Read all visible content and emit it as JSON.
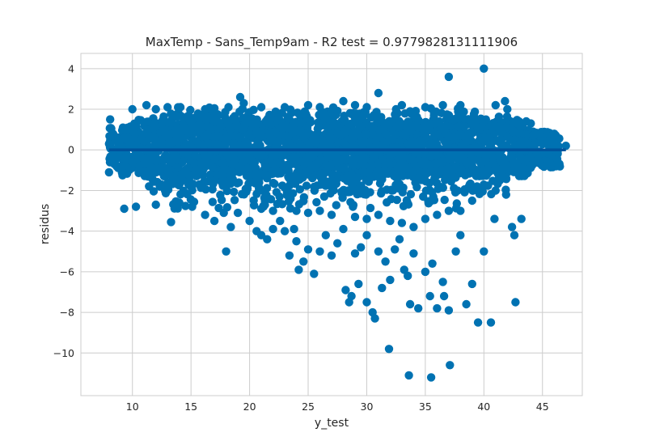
{
  "chart_data": {
    "type": "scatter",
    "title": "MaxTemp - Sans_Temp9am - R2 test = 0.9779828131111906",
    "xlabel": "y_test",
    "ylabel": "residus",
    "xlim": [
      5.6,
      48.4
    ],
    "ylim": [
      -12.1,
      4.75
    ],
    "xticks": [
      10,
      15,
      20,
      25,
      30,
      35,
      40,
      45
    ],
    "yticks": [
      4,
      2,
      0,
      -2,
      -4,
      -6,
      -8,
      -10
    ],
    "ytick_labels": [
      "4",
      "2",
      "0",
      "−2",
      "−4",
      "−6",
      "−8",
      "−10"
    ],
    "grid": true,
    "point_color": "#0072b2",
    "reference_line": {
      "y": 0,
      "x_range": [
        8,
        47
      ],
      "color": "#00539c"
    },
    "dense_cluster": {
      "note_x_range": [
        8,
        47
      ],
      "bands": [
        {
          "x": [
            9,
            44
          ],
          "y": [
            -1.3,
            1.5
          ]
        },
        {
          "x": [
            11,
            42
          ],
          "y": [
            -2.2,
            1.9
          ]
        },
        {
          "x": [
            13,
            39
          ],
          "y": [
            -2.9,
            2.1
          ]
        }
      ]
    },
    "points": [
      [
        8.0,
        -1.1
      ],
      [
        8.1,
        1.5
      ],
      [
        8.0,
        0.3
      ],
      [
        9.0,
        0.5
      ],
      [
        9.5,
        -0.3
      ],
      [
        10.0,
        2.0
      ],
      [
        11.2,
        2.2
      ],
      [
        12.0,
        2.0
      ],
      [
        13.0,
        2.1
      ],
      [
        14.1,
        2.1
      ],
      [
        16.2,
        2.0
      ],
      [
        17.0,
        2.05
      ],
      [
        18.2,
        2.1
      ],
      [
        19.2,
        2.6
      ],
      [
        19.5,
        2.3
      ],
      [
        21.0,
        2.1
      ],
      [
        23.0,
        2.1
      ],
      [
        25.0,
        2.2
      ],
      [
        26.0,
        2.1
      ],
      [
        28.0,
        2.4
      ],
      [
        29.0,
        2.2
      ],
      [
        30.0,
        2.1
      ],
      [
        31.0,
        2.8
      ],
      [
        32.5,
        2.0
      ],
      [
        33.0,
        2.2
      ],
      [
        35.0,
        2.1
      ],
      [
        36.5,
        2.2
      ],
      [
        37.0,
        3.6
      ],
      [
        38.0,
        2.2
      ],
      [
        40.0,
        4.0
      ],
      [
        41.0,
        2.2
      ],
      [
        41.8,
        2.4
      ],
      [
        42.0,
        2.0
      ],
      [
        43.0,
        1.4
      ],
      [
        44.0,
        1.3
      ],
      [
        44.2,
        0.7
      ],
      [
        45.5,
        0.4
      ],
      [
        46.1,
        0.0
      ],
      [
        47.0,
        0.2
      ],
      [
        44.5,
        -0.2
      ],
      [
        43.5,
        -0.6
      ],
      [
        42.8,
        -0.9
      ],
      [
        41.5,
        0.5
      ],
      [
        42.5,
        0.9
      ],
      [
        43.0,
        -1.0
      ],
      [
        9.3,
        -2.9
      ],
      [
        10.3,
        -2.8
      ],
      [
        12.0,
        -2.7
      ],
      [
        13.3,
        -3.55
      ],
      [
        14.0,
        -2.6
      ],
      [
        15.1,
        -2.8
      ],
      [
        16.2,
        -3.2
      ],
      [
        17.0,
        -3.5
      ],
      [
        17.8,
        -3.1
      ],
      [
        18.0,
        -5.0
      ],
      [
        18.4,
        -3.8
      ],
      [
        19.0,
        -3.1
      ],
      [
        20.0,
        -3.5
      ],
      [
        20.6,
        -4.0
      ],
      [
        21.0,
        -4.2
      ],
      [
        21.5,
        -4.4
      ],
      [
        22.0,
        -3.9
      ],
      [
        22.6,
        -3.5
      ],
      [
        23.0,
        -4.0
      ],
      [
        23.4,
        -5.2
      ],
      [
        23.8,
        -3.9
      ],
      [
        24.0,
        -4.5
      ],
      [
        24.2,
        -5.9
      ],
      [
        24.6,
        -5.5
      ],
      [
        25.0,
        -4.9
      ],
      [
        25.5,
        -6.1
      ],
      [
        26.0,
        -5.0
      ],
      [
        26.5,
        -4.2
      ],
      [
        27.0,
        -5.2
      ],
      [
        27.5,
        -4.6
      ],
      [
        28.0,
        -3.9
      ],
      [
        28.2,
        -6.9
      ],
      [
        28.7,
        -7.2
      ],
      [
        29.0,
        -5.1
      ],
      [
        29.3,
        -6.6
      ],
      [
        29.5,
        -4.8
      ],
      [
        30.0,
        -4.2
      ],
      [
        30.5,
        -8.0
      ],
      [
        30.7,
        -8.3
      ],
      [
        31.0,
        -5.0
      ],
      [
        31.3,
        -6.8
      ],
      [
        31.6,
        -5.5
      ],
      [
        32.0,
        -6.4
      ],
      [
        32.4,
        -4.9
      ],
      [
        32.8,
        -4.4
      ],
      [
        33.2,
        -5.9
      ],
      [
        33.5,
        -6.2
      ],
      [
        33.7,
        -7.6
      ],
      [
        34.0,
        -5.1
      ],
      [
        34.4,
        -7.8
      ],
      [
        35.0,
        -6.0
      ],
      [
        35.4,
        -7.2
      ],
      [
        35.6,
        -5.6
      ],
      [
        36.0,
        -7.8
      ],
      [
        36.5,
        -6.5
      ],
      [
        36.6,
        -7.2
      ],
      [
        37.0,
        -7.9
      ],
      [
        37.1,
        -10.6
      ],
      [
        37.6,
        -5.0
      ],
      [
        38.0,
        -4.2
      ],
      [
        38.5,
        -7.6
      ],
      [
        39.0,
        -6.6
      ],
      [
        39.5,
        -8.5
      ],
      [
        40.0,
        -5.0
      ],
      [
        40.6,
        -8.5
      ],
      [
        40.9,
        -3.4
      ],
      [
        41.9,
        -2.2
      ],
      [
        42.4,
        -3.8
      ],
      [
        42.6,
        -4.2
      ],
      [
        42.7,
        -7.5
      ],
      [
        43.2,
        -3.4
      ],
      [
        41.0,
        -2.0
      ],
      [
        39.0,
        -2.5
      ],
      [
        38.0,
        -3.0
      ],
      [
        37.0,
        -3.0
      ],
      [
        36.0,
        -3.2
      ],
      [
        35.0,
        -3.4
      ],
      [
        34.0,
        -3.8
      ],
      [
        33.0,
        -3.6
      ],
      [
        32.0,
        -3.5
      ],
      [
        31.0,
        -3.2
      ],
      [
        30.0,
        -3.4
      ],
      [
        29.0,
        -3.3
      ],
      [
        27.0,
        -3.2
      ],
      [
        26.0,
        -3.0
      ],
      [
        25.0,
        -3.1
      ],
      [
        24.0,
        -3.0
      ],
      [
        22.0,
        -3.0
      ],
      [
        21.0,
        -2.9
      ],
      [
        31.9,
        -9.8
      ],
      [
        33.6,
        -11.1
      ],
      [
        35.5,
        -11.2
      ],
      [
        30.0,
        -7.5
      ],
      [
        28.5,
        -7.5
      ]
    ]
  }
}
